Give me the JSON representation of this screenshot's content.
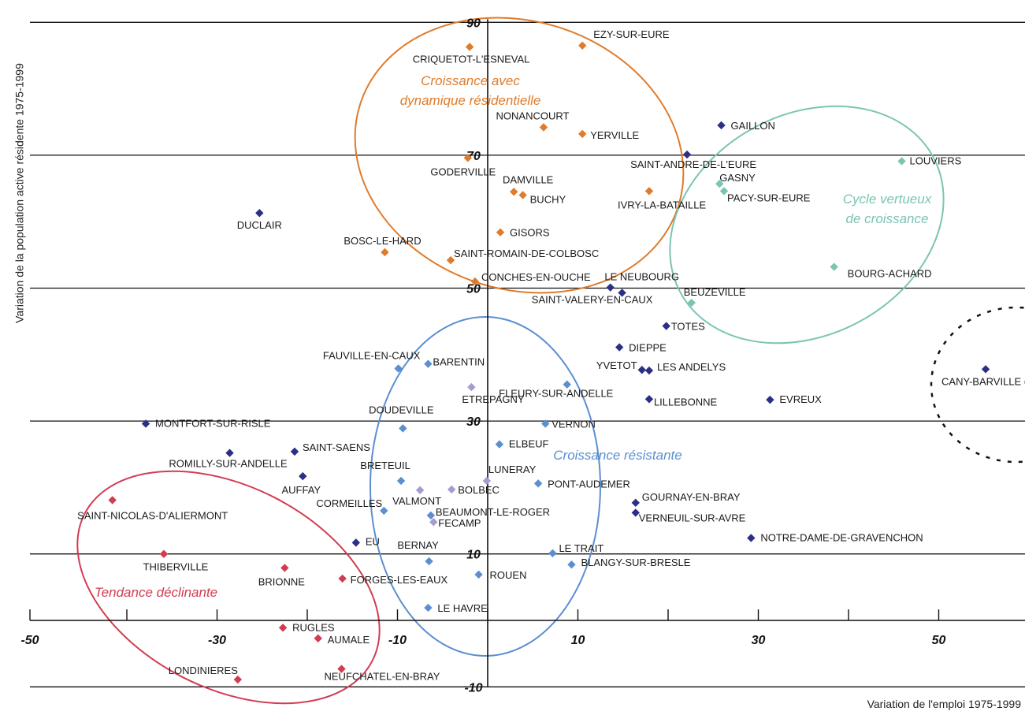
{
  "chart_data": {
    "type": "scatter",
    "title": "",
    "xlabel": "Variation de l'emploi 1975-1999",
    "ylabel": "Variation de la population active résidente 1975-1999",
    "xlim": [
      -50,
      60
    ],
    "ylim": [
      -10,
      90
    ],
    "grid": "horizontal",
    "legend": "none",
    "x_ticks": [
      {
        "value": -50,
        "label": "-50"
      },
      {
        "value": -30,
        "label": "-30"
      },
      {
        "value": -10,
        "label": "-10"
      },
      {
        "value": 10,
        "label": "10"
      },
      {
        "value": 30,
        "label": "30"
      },
      {
        "value": 50,
        "label": "50"
      }
    ],
    "y_ticks": [
      {
        "value": 90,
        "label": "90"
      },
      {
        "value": 70,
        "label": "70"
      },
      {
        "value": 50,
        "label": "50"
      },
      {
        "value": 30,
        "label": "30"
      },
      {
        "value": 10,
        "label": "10"
      },
      {
        "value": -10,
        "label": "-10"
      }
    ],
    "colors": {
      "dark_blue": "#2b2f86",
      "orange": "#e07b2a",
      "teal": "#7bc4b3",
      "blue": "#5b8fcf",
      "lavender": "#a79bd0",
      "red": "#d23c50",
      "black": "#111111"
    },
    "groups": [
      {
        "label_lines": [
          "Croissance avec",
          "dynamique résidentielle"
        ],
        "color": "#e07b2a"
      },
      {
        "label_lines": [
          "Cycle vertueux",
          "de croissance"
        ],
        "color": "#7bc4b3"
      },
      {
        "label_lines": [
          "Croissance résistante"
        ],
        "color": "#5b8fcf"
      },
      {
        "label_lines": [
          "Tendance déclinante"
        ],
        "color": "#d23c50"
      }
    ],
    "points": [
      {
        "name": "EZY-SUR-EURE",
        "x": 10.5,
        "y": 86.5,
        "color": "#e07b2a"
      },
      {
        "name": "CRIQUETOT-L'ESNEVAL",
        "x": -2,
        "y": 86.3,
        "color": "#e07b2a"
      },
      {
        "name": "NONANCOURT",
        "x": 6.2,
        "y": 74.2,
        "color": "#e07b2a"
      },
      {
        "name": "YERVILLE",
        "x": 10.5,
        "y": 73.2,
        "color": "#e07b2a"
      },
      {
        "name": "GODERVILLE",
        "x": -2.2,
        "y": 69.6,
        "color": "#e07b2a"
      },
      {
        "name": "DAMVILLE",
        "x": 2.9,
        "y": 64.5,
        "color": "#e07b2a"
      },
      {
        "name": "BUCHY",
        "x": 3.9,
        "y": 64,
        "color": "#e07b2a"
      },
      {
        "name": "IVRY-LA-BATAILLE",
        "x": 17.9,
        "y": 64.6,
        "color": "#e07b2a"
      },
      {
        "name": "GISORS",
        "x": 1.4,
        "y": 58.4,
        "color": "#e07b2a"
      },
      {
        "name": "BOSC-LE-HARD",
        "x": -11.4,
        "y": 55.4,
        "color": "#e07b2a"
      },
      {
        "name": "SAINT-ROMAIN-DE-COLBOSC",
        "x": -4.1,
        "y": 54.2,
        "color": "#e07b2a"
      },
      {
        "name": "CONCHES-EN-OUCHE",
        "x": -1.4,
        "y": 51,
        "color": "#e07b2a"
      },
      {
        "name": "GAILLON",
        "x": 25.9,
        "y": 74.5,
        "color": "#2b2f86"
      },
      {
        "name": "SAINT-ANDRE-DE-L'EURE",
        "x": 22.1,
        "y": 70.1,
        "color": "#2b2f86"
      },
      {
        "name": "LOUVIERS",
        "x": 45.9,
        "y": 69.1,
        "color": "#7bc4b3"
      },
      {
        "name": "GASNY",
        "x": 25.7,
        "y": 65.7,
        "color": "#7bc4b3"
      },
      {
        "name": "PACY-SUR-EURE",
        "x": 26.2,
        "y": 64.6,
        "color": "#7bc4b3"
      },
      {
        "name": "BOURG-ACHARD",
        "x": 38.4,
        "y": 53.2,
        "color": "#7bc4b3"
      },
      {
        "name": "BEUZEVILLE",
        "x": 22.6,
        "y": 47.8,
        "color": "#7bc4b3"
      },
      {
        "name": "DUCLAIR",
        "x": -25.3,
        "y": 61.3,
        "color": "#2b2f86"
      },
      {
        "name": "LE NEUBOURG",
        "x": 13.6,
        "y": 50.1,
        "color": "#2b2f86"
      },
      {
        "name": "SAINT-VALERY-EN-CAUX",
        "x": 14.9,
        "y": 49.3,
        "color": "#2b2f86"
      },
      {
        "name": "TOTES",
        "x": 19.8,
        "y": 44.3,
        "color": "#2b2f86"
      },
      {
        "name": "DIEPPE",
        "x": 14.6,
        "y": 41.1,
        "color": "#2b2f86"
      },
      {
        "name": "YVETOT",
        "x": 17.1,
        "y": 37.7,
        "color": "#2b2f86"
      },
      {
        "name": "LES ANDELYS",
        "x": 17.9,
        "y": 37.6,
        "color": "#2b2f86"
      },
      {
        "name": "LILLEBONNE",
        "x": 17.9,
        "y": 33.3,
        "color": "#2b2f86"
      },
      {
        "name": "EVREUX",
        "x": 31.3,
        "y": 33.2,
        "color": "#2b2f86"
      },
      {
        "name": "CANY-BARVILLE (",
        "x": 55.2,
        "y": 37.8,
        "color": "#2b2f86"
      },
      {
        "name": "MONTFORT-SUR-RISLE",
        "x": -37.9,
        "y": 29.6,
        "color": "#2b2f86"
      },
      {
        "name": "ROMILLY-SUR-ANDELLE",
        "x": -28.6,
        "y": 25.2,
        "color": "#2b2f86"
      },
      {
        "name": "SAINT-SAENS",
        "x": -21.4,
        "y": 25.4,
        "color": "#2b2f86"
      },
      {
        "name": "AUFFAY",
        "x": -20.5,
        "y": 21.7,
        "color": "#2b2f86"
      },
      {
        "name": "EU",
        "x": -14.6,
        "y": 11.7,
        "color": "#2b2f86"
      },
      {
        "name": "GOURNAY-EN-BRAY",
        "x": 16.4,
        "y": 17.7,
        "color": "#2b2f86"
      },
      {
        "name": "VERNEUIL-SUR-AVRE",
        "x": 16.4,
        "y": 16.2,
        "color": "#2b2f86"
      },
      {
        "name": "NOTRE-DAME-DE-GRAVENCHON",
        "x": 29.2,
        "y": 12.4,
        "color": "#2b2f86"
      },
      {
        "name": "FAUVILLE-EN-CAUX",
        "x": -9.9,
        "y": 37.9,
        "color": "#5b8fcf"
      },
      {
        "name": "BARENTIN",
        "x": -6.6,
        "y": 38.6,
        "color": "#5b8fcf"
      },
      {
        "name": "ETREPAGNY",
        "x": -1.8,
        "y": 35.1,
        "color": "#a79bd0"
      },
      {
        "name": "FLEURY-SUR-ANDELLE",
        "x": 8.8,
        "y": 35.5,
        "color": "#5b8fcf"
      },
      {
        "name": "DOUDEVILLE",
        "x": -9.4,
        "y": 28.9,
        "color": "#5b8fcf"
      },
      {
        "name": "VERNON",
        "x": 6.4,
        "y": 29.6,
        "color": "#5b8fcf"
      },
      {
        "name": "ELBEUF",
        "x": 1.3,
        "y": 26.5,
        "color": "#5b8fcf"
      },
      {
        "name": "BRETEUIL",
        "x": -9.6,
        "y": 21,
        "color": "#5b8fcf"
      },
      {
        "name": "VALMONT",
        "x": -7.5,
        "y": 19.6,
        "color": "#a79bd0"
      },
      {
        "name": "BOLBEC",
        "x": -4,
        "y": 19.7,
        "color": "#a79bd0"
      },
      {
        "name": "LUNERAY",
        "x": -0.1,
        "y": 21,
        "color": "#a79bd0"
      },
      {
        "name": "PONT-AUDEMER",
        "x": 5.6,
        "y": 20.6,
        "color": "#5b8fcf"
      },
      {
        "name": "CORMEILLES",
        "x": -11.5,
        "y": 16.5,
        "color": "#5b8fcf"
      },
      {
        "name": "BEAUMONT-LE-ROGER",
        "x": -6.3,
        "y": 15.8,
        "color": "#5b8fcf"
      },
      {
        "name": "FECAMP",
        "x": -6,
        "y": 14.8,
        "color": "#a79bd0"
      },
      {
        "name": "BERNAY",
        "x": -6.5,
        "y": 8.9,
        "color": "#5b8fcf"
      },
      {
        "name": "LE TRAIT",
        "x": 7.2,
        "y": 10.1,
        "color": "#5b8fcf"
      },
      {
        "name": "BLANGY-SUR-BRESLE",
        "x": 9.3,
        "y": 8.4,
        "color": "#5b8fcf"
      },
      {
        "name": "ROUEN",
        "x": -1,
        "y": 6.9,
        "color": "#5b8fcf"
      },
      {
        "name": "LE HAVRE",
        "x": -6.6,
        "y": 1.9,
        "color": "#5b8fcf"
      },
      {
        "name": "SAINT-NICOLAS-D'ALIERMONT",
        "x": -41.6,
        "y": 18.1,
        "color": "#d23c50"
      },
      {
        "name": "THIBERVILLE",
        "x": -35.9,
        "y": 10,
        "color": "#d23c50"
      },
      {
        "name": "BRIONNE",
        "x": -22.5,
        "y": 7.9,
        "color": "#d23c50"
      },
      {
        "name": "FORGES-LES-EAUX",
        "x": -16.1,
        "y": 6.3,
        "color": "#d23c50"
      },
      {
        "name": "RUGLES",
        "x": -22.7,
        "y": -1.1,
        "color": "#d23c50"
      },
      {
        "name": "AUMALE",
        "x": -18.8,
        "y": -2.7,
        "color": "#d23c50"
      },
      {
        "name": "LONDINIERES",
        "x": -27.7,
        "y": -8.9,
        "color": "#d23c50"
      },
      {
        "name": "NEUFCHATEL-EN-BRAY",
        "x": -16.2,
        "y": -7.3,
        "color": "#d23c50"
      }
    ]
  }
}
